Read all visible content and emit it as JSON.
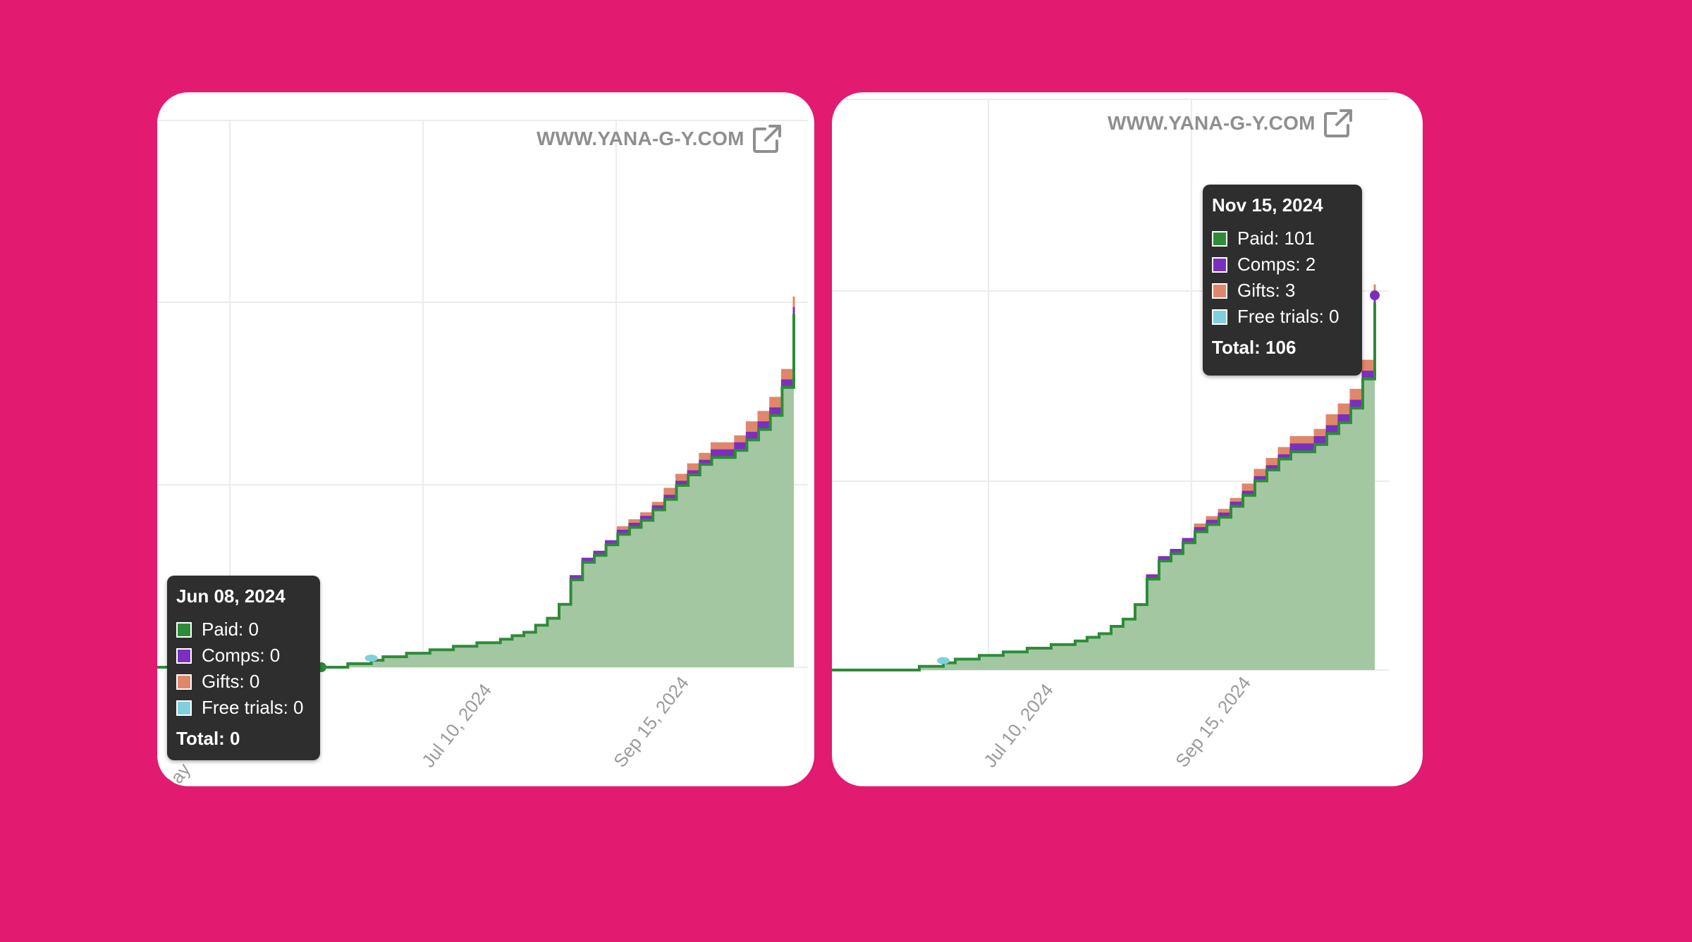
{
  "watermark": "WWW.YANA-G-Y.COM",
  "colors": {
    "background": "#e21a70",
    "paid": "#2e8b3a",
    "paid_fill": "#a3c7a0",
    "comps": "#7b2fbe",
    "gifts": "#e0876b",
    "free_trials": "#7fd0dc"
  },
  "chart_data": [
    {
      "type": "area",
      "stacked": true,
      "x_ticks": [
        "May",
        "Jul 10, 2024",
        "Sep 15, 2024"
      ],
      "series": [
        {
          "name": "Paid",
          "values": [
            0,
            0,
            1,
            1,
            2,
            3,
            3,
            4,
            4,
            5,
            5,
            6,
            6,
            7,
            7,
            8,
            9,
            10,
            12,
            14,
            18,
            25,
            30,
            32,
            35,
            38,
            40,
            42,
            45,
            48,
            52,
            55,
            58,
            60,
            60,
            62,
            65,
            68,
            72,
            80,
            101
          ]
        },
        {
          "name": "Comps",
          "values": [
            0,
            0,
            0,
            0,
            0,
            0,
            0,
            0,
            0,
            0,
            0,
            0,
            0,
            0,
            0,
            0,
            0,
            0,
            0,
            0,
            0,
            1,
            1,
            1,
            1,
            1,
            1,
            1,
            1,
            1,
            1,
            1,
            1,
            2,
            2,
            2,
            2,
            2,
            2,
            2,
            2
          ]
        },
        {
          "name": "Gifts",
          "values": [
            0,
            0,
            0,
            0,
            0,
            0,
            0,
            0,
            0,
            0,
            0,
            0,
            0,
            0,
            0,
            0,
            0,
            0,
            0,
            0,
            0,
            0,
            0,
            0,
            0,
            1,
            1,
            1,
            1,
            2,
            2,
            2,
            2,
            2,
            2,
            2,
            3,
            3,
            3,
            3,
            3
          ]
        },
        {
          "name": "Free trials",
          "values": [
            0,
            0,
            0,
            0,
            0,
            0,
            0,
            0,
            0,
            0,
            0,
            0,
            0,
            0,
            0,
            0,
            0,
            0,
            0,
            0,
            0,
            0,
            0,
            0,
            0,
            0,
            0,
            0,
            0,
            0,
            0,
            0,
            0,
            0,
            0,
            0,
            0,
            0,
            0,
            0,
            0
          ]
        }
      ],
      "tooltip": {
        "date": "Jun 08, 2024",
        "paid": "Paid: 0",
        "comps": "Comps: 0",
        "gifts": "Gifts: 0",
        "free_trials": "Free trials: 0",
        "total": "Total: 0"
      }
    },
    {
      "type": "area",
      "stacked": true,
      "x_ticks": [
        "Jul 10, 2024",
        "Sep 15, 2024"
      ],
      "series": [
        {
          "name": "Paid",
          "values": [
            0,
            0,
            1,
            1,
            2,
            3,
            3,
            4,
            4,
            5,
            5,
            6,
            6,
            7,
            7,
            8,
            9,
            10,
            12,
            14,
            18,
            25,
            30,
            32,
            35,
            38,
            40,
            42,
            45,
            48,
            52,
            55,
            58,
            60,
            60,
            62,
            65,
            68,
            72,
            80,
            101
          ]
        },
        {
          "name": "Comps",
          "values": [
            0,
            0,
            0,
            0,
            0,
            0,
            0,
            0,
            0,
            0,
            0,
            0,
            0,
            0,
            0,
            0,
            0,
            0,
            0,
            0,
            0,
            1,
            1,
            1,
            1,
            1,
            1,
            1,
            1,
            1,
            1,
            1,
            1,
            2,
            2,
            2,
            2,
            2,
            2,
            2,
            2
          ]
        },
        {
          "name": "Gifts",
          "values": [
            0,
            0,
            0,
            0,
            0,
            0,
            0,
            0,
            0,
            0,
            0,
            0,
            0,
            0,
            0,
            0,
            0,
            0,
            0,
            0,
            0,
            0,
            0,
            0,
            0,
            1,
            1,
            1,
            1,
            2,
            2,
            2,
            2,
            2,
            2,
            2,
            3,
            3,
            3,
            3,
            3
          ]
        },
        {
          "name": "Free trials",
          "values": [
            0,
            0,
            0,
            0,
            0,
            0,
            0,
            0,
            0,
            0,
            0,
            0,
            0,
            0,
            0,
            0,
            0,
            0,
            0,
            0,
            0,
            0,
            0,
            0,
            0,
            0,
            0,
            0,
            0,
            0,
            0,
            0,
            0,
            0,
            0,
            0,
            0,
            0,
            0,
            0,
            0
          ]
        }
      ],
      "tooltip": {
        "date": "Nov 15, 2024",
        "paid": "Paid: 101",
        "comps": "Comps: 2",
        "gifts": "Gifts: 3",
        "free_trials": "Free trials: 0",
        "total": "Total: 106"
      }
    }
  ]
}
